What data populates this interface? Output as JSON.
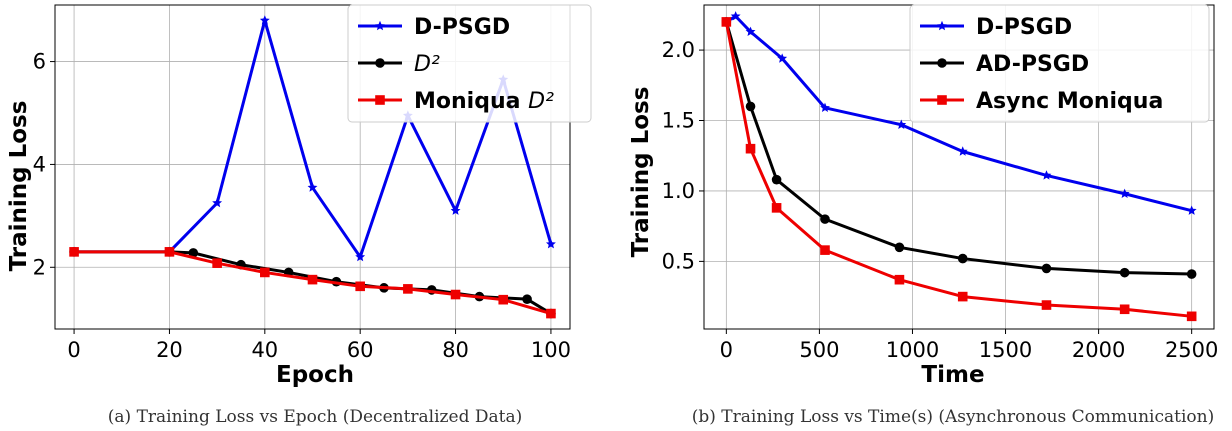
{
  "chart_data": [
    {
      "type": "line",
      "caption": "(a) Training Loss vs Epoch (Decentralized Data)",
      "xlabel": "Epoch",
      "ylabel": "Training Loss",
      "xlim": [
        -4,
        104
      ],
      "ylim": [
        0.8,
        7.1
      ],
      "xticks": [
        0,
        20,
        40,
        60,
        80,
        100
      ],
      "yticks": [
        2,
        4,
        6
      ],
      "grid": true,
      "legend_position": "top-right",
      "colors": {
        "D-PSGD": "#0000ee",
        "D2": "#000000",
        "Moniqua D2": "#ee0000"
      },
      "series": [
        {
          "name": "D-PSGD",
          "legend_main": "D-PSGD",
          "legend_math": "",
          "marker": "star",
          "x": [
            0,
            20,
            30,
            40,
            50,
            60,
            70,
            80,
            90,
            100
          ],
          "y": [
            2.3,
            2.3,
            3.25,
            6.8,
            3.55,
            2.2,
            4.95,
            3.1,
            5.65,
            2.45
          ]
        },
        {
          "name": "D2",
          "legend_main": "",
          "legend_math": "D²",
          "marker": "circle",
          "x": [
            0,
            20,
            25,
            35,
            45,
            55,
            65,
            75,
            85,
            95,
            100
          ],
          "y": [
            2.3,
            2.3,
            2.28,
            2.05,
            1.9,
            1.72,
            1.6,
            1.56,
            1.43,
            1.38,
            1.1
          ]
        },
        {
          "name": "Moniqua D2",
          "legend_main": "Moniqua ",
          "legend_math": "D²",
          "marker": "square",
          "x": [
            0,
            20,
            30,
            40,
            50,
            60,
            70,
            80,
            90,
            100
          ],
          "y": [
            2.3,
            2.3,
            2.08,
            1.9,
            1.76,
            1.63,
            1.58,
            1.47,
            1.37,
            1.1
          ]
        }
      ]
    },
    {
      "type": "line",
      "caption": "(b) Training Loss vs Time(s) (Asynchronous Communication)",
      "xlabel": "Time",
      "ylabel": "Training Loss",
      "xlim": [
        -120,
        2620
      ],
      "ylim": [
        0.02,
        2.32
      ],
      "xticks": [
        0,
        500,
        1000,
        1500,
        2000,
        2500
      ],
      "yticks": [
        0.5,
        1.0,
        1.5,
        2.0
      ],
      "ytick_labels": [
        "0.5",
        "1.0",
        "1.5",
        "2.0"
      ],
      "grid": true,
      "legend_position": "top-right",
      "colors": {
        "D-PSGD": "#0000ee",
        "AD-PSGD": "#000000",
        "Async Moniqua": "#ee0000"
      },
      "series": [
        {
          "name": "D-PSGD",
          "legend_main": "D-PSGD",
          "legend_math": "",
          "marker": "star",
          "x": [
            0,
            50,
            130,
            300,
            530,
            940,
            1270,
            1720,
            2140,
            2500
          ],
          "y": [
            2.2,
            2.24,
            2.13,
            1.94,
            1.59,
            1.47,
            1.28,
            1.11,
            0.98,
            0.86
          ]
        },
        {
          "name": "AD-PSGD",
          "legend_main": "AD-PSGD",
          "legend_math": "",
          "marker": "circle",
          "x": [
            0,
            130,
            270,
            530,
            930,
            1270,
            1720,
            2140,
            2500
          ],
          "y": [
            2.2,
            1.6,
            1.08,
            0.8,
            0.6,
            0.52,
            0.45,
            0.42,
            0.41
          ]
        },
        {
          "name": "Async Moniqua",
          "legend_main": "Async Moniqua",
          "legend_math": "",
          "marker": "square",
          "x": [
            0,
            130,
            270,
            530,
            930,
            1270,
            1720,
            2140,
            2500
          ],
          "y": [
            2.2,
            1.3,
            0.88,
            0.58,
            0.37,
            0.25,
            0.19,
            0.16,
            0.11
          ]
        }
      ]
    }
  ]
}
